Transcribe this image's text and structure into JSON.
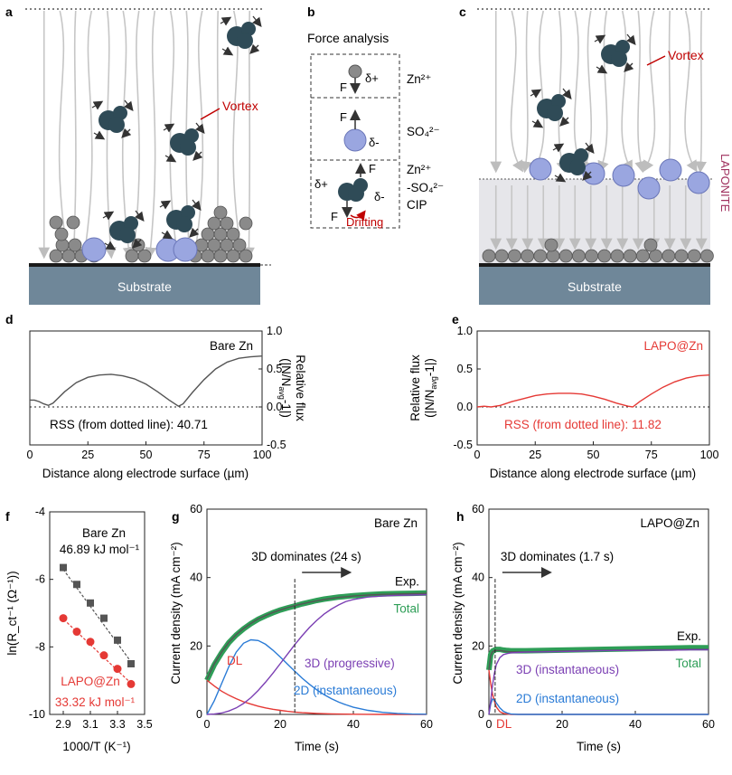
{
  "panels": {
    "a": {
      "label": "a",
      "vortex": "Vortex",
      "substrate": "Substrate"
    },
    "b": {
      "label": "b",
      "title": "Force analysis",
      "zn_label": "Zn²⁺",
      "so4_label": "SO₄²⁻",
      "cip_line1": "Zn²⁺",
      "cip_line2": "-SO₄²⁻",
      "cip_line3": "CIP",
      "force_F": "F",
      "delta_plus": "δ+",
      "delta_minus": "δ-",
      "drifting": "Drifting"
    },
    "c": {
      "label": "c",
      "vortex": "Vortex",
      "substrate": "Substrate",
      "laponite": "LAPONITE"
    },
    "d": {
      "label": "d",
      "legend": "Bare Zn",
      "rss": "RSS (from dotted line): 40.71"
    },
    "e": {
      "label": "e",
      "legend": "LAPO@Zn",
      "rss": "RSS (from dotted line): 11.82"
    },
    "f": {
      "label": "f",
      "bare_label": "Bare Zn",
      "bare_energy": "46.89 kJ mol⁻¹",
      "lapo_label": "LAPO@Zn",
      "lapo_energy": "33.32 kJ mol⁻¹"
    },
    "g": {
      "label": "g",
      "legend": "Bare Zn",
      "dominates": "3D dominates (24 s)",
      "exp": "Exp.",
      "total": "Total",
      "dl": "DL",
      "label_3d": "3D (progressive)",
      "label_2d": "2D (instantaneous)"
    },
    "h": {
      "label": "h",
      "legend": "LAPO@Zn",
      "dominates": "3D dominates (1.7 s)",
      "exp": "Exp.",
      "total": "Total",
      "dl": "DL",
      "label_3d": "3D (instantaneous)",
      "label_2d": "2D (instantaneous)"
    }
  },
  "colors": {
    "bare": "#555555",
    "lapo": "#e53935",
    "green": "#2e9e57",
    "purple": "#7b3fb3",
    "blue": "#2a7bd6",
    "cation": "#2f4b57",
    "anion": "#9aa6e0",
    "zn_atom": "#8a8a8a",
    "substrate": "#6f8799",
    "vortex": "#c00000",
    "laponite": "#a0305e"
  },
  "chart_data": [
    {
      "id": "d",
      "type": "line",
      "title": "Bare Zn",
      "xlabel": "Distance along electrode surface (µm)",
      "ylabel": "Relative flux (|N/N_avg -1|)",
      "xlim": [
        0,
        100
      ],
      "ylim": [
        -0.5,
        1.0
      ],
      "xticks": [
        "0",
        "25",
        "50",
        "75",
        "100"
      ],
      "yticks": [
        "-0.5",
        "0.0",
        "0.5",
        "1.0"
      ],
      "x": [
        0,
        2,
        4,
        6,
        8,
        10,
        15,
        20,
        25,
        30,
        35,
        40,
        45,
        50,
        55,
        60,
        64,
        66,
        70,
        75,
        80,
        85,
        90,
        95,
        100
      ],
      "y": [
        0.09,
        0.09,
        0.07,
        0.04,
        0.02,
        0.05,
        0.2,
        0.32,
        0.39,
        0.42,
        0.43,
        0.41,
        0.37,
        0.3,
        0.2,
        0.09,
        0.01,
        0.04,
        0.19,
        0.36,
        0.5,
        0.59,
        0.64,
        0.66,
        0.67
      ],
      "rss": 40.71
    },
    {
      "id": "e",
      "type": "line",
      "title": "LAPO@Zn",
      "xlabel": "Distance along electrode surface (µm)",
      "ylabel": "Relative flux (|N/N_avg -1|)",
      "xlim": [
        0,
        100
      ],
      "ylim": [
        -0.5,
        1.0
      ],
      "xticks": [
        "0",
        "25",
        "50",
        "75",
        "100"
      ],
      "yticks": [
        "-0.5",
        "0.0",
        "0.5",
        "1.0"
      ],
      "x": [
        0,
        3,
        6,
        10,
        15,
        20,
        25,
        30,
        35,
        40,
        45,
        50,
        55,
        60,
        65,
        67,
        70,
        75,
        80,
        85,
        90,
        95,
        100
      ],
      "y": [
        0.0,
        0.01,
        0.0,
        0.02,
        0.07,
        0.11,
        0.15,
        0.17,
        0.18,
        0.18,
        0.17,
        0.14,
        0.1,
        0.05,
        0.01,
        0.0,
        0.07,
        0.17,
        0.26,
        0.33,
        0.38,
        0.41,
        0.42
      ],
      "rss": 11.82
    },
    {
      "id": "f",
      "type": "scatter",
      "xlabel": "1000/T (K⁻¹)",
      "ylabel": "ln(R_ct⁻¹ (Ω⁻¹))",
      "xlim": [
        2.8,
        3.5
      ],
      "ylim": [
        -10,
        -4
      ],
      "xticks": [
        "2.9",
        "3.1",
        "3.3",
        "3.5"
      ],
      "yticks": [
        "-4",
        "-6",
        "-8",
        "-10"
      ],
      "series": [
        {
          "name": "Bare Zn",
          "x": [
            2.9,
            3.0,
            3.1,
            3.2,
            3.3,
            3.4
          ],
          "y": [
            -5.65,
            -6.15,
            -6.7,
            -7.15,
            -7.8,
            -8.5
          ]
        },
        {
          "name": "LAPO@Zn",
          "x": [
            2.9,
            3.0,
            3.1,
            3.2,
            3.3,
            3.4
          ],
          "y": [
            -7.15,
            -7.55,
            -7.85,
            -8.25,
            -8.65,
            -9.1
          ]
        }
      ]
    },
    {
      "id": "g",
      "type": "line",
      "title": "Bare Zn",
      "xlabel": "Time (s)",
      "ylabel": "Current density (mA cm⁻²)",
      "xlim": [
        0,
        60
      ],
      "ylim": [
        0,
        60
      ],
      "xticks": [
        "0",
        "20",
        "40",
        "60"
      ],
      "yticks": [
        "0",
        "20",
        "40",
        "60"
      ],
      "x": [
        0,
        2,
        4,
        6,
        8,
        10,
        12,
        14,
        16,
        18,
        20,
        22,
        24,
        26,
        28,
        30,
        32,
        34,
        36,
        38,
        40,
        44,
        48,
        52,
        56,
        60
      ],
      "series": [
        {
          "name": "Exp.",
          "values": [
            10,
            14.5,
            18,
            21,
            23.2,
            25,
            26.5,
            27.8,
            28.8,
            29.7,
            30.5,
            31.1,
            31.7,
            32.3,
            32.8,
            33.3,
            33.7,
            34.0,
            34.3,
            34.5,
            34.7,
            35.0,
            35.2,
            35.3,
            35.4,
            35.5
          ]
        },
        {
          "name": "Total",
          "values": [
            10.3,
            14.8,
            18.2,
            21.1,
            23.3,
            25.1,
            26.6,
            27.9,
            28.9,
            29.8,
            30.5,
            31.2,
            31.8,
            32.3,
            32.8,
            33.2,
            33.6,
            33.9,
            34.2,
            34.4,
            34.6,
            34.9,
            35.1,
            35.2,
            35.3,
            35.4
          ]
        },
        {
          "name": "DL",
          "values": [
            10,
            8.3,
            6.8,
            5.6,
            4.6,
            3.7,
            3.0,
            2.4,
            1.9,
            1.5,
            1.2,
            0.9,
            0.7,
            0.5,
            0.4,
            0.3,
            0.2,
            0.15,
            0.1,
            0.08,
            0.05,
            0.02,
            0.01,
            0,
            0,
            0
          ]
        },
        {
          "name": "2D (instantaneous)",
          "values": [
            0,
            4,
            9,
            14,
            18.2,
            20.8,
            21.8,
            21.6,
            20.5,
            18.8,
            16.8,
            14.7,
            12.6,
            10.6,
            8.8,
            7.2,
            5.8,
            4.6,
            3.6,
            2.8,
            2.1,
            1.2,
            0.6,
            0.3,
            0.1,
            0.05
          ]
        },
        {
          "name": "3D (progressive)",
          "values": [
            0,
            0.1,
            0.4,
            1.0,
            1.9,
            3.2,
            4.9,
            7.0,
            9.4,
            12.0,
            14.8,
            17.6,
            20.4,
            23.0,
            25.4,
            27.5,
            29.3,
            30.8,
            32.0,
            33.0,
            33.6,
            34.3,
            34.6,
            34.8,
            34.9,
            35.0
          ]
        }
      ],
      "annotation": {
        "text": "3D dominates (24 s)",
        "x": 24
      }
    },
    {
      "id": "h",
      "type": "line",
      "title": "LAPO@Zn",
      "xlabel": "Time (s)",
      "ylabel": "Current density (mA cm⁻²)",
      "xlim": [
        0,
        60
      ],
      "ylim": [
        0,
        60
      ],
      "xticks": [
        "0",
        "20",
        "40",
        "60"
      ],
      "yticks": [
        "0",
        "20",
        "40",
        "60"
      ],
      "x": [
        0,
        0.5,
        1,
        1.5,
        2,
        3,
        4,
        5,
        6,
        8,
        10,
        15,
        20,
        25,
        30,
        35,
        40,
        45,
        50,
        55,
        60
      ],
      "series": [
        {
          "name": "Exp.",
          "values": [
            13,
            17.5,
            18.5,
            18.8,
            19,
            19,
            18.8,
            18.7,
            18.6,
            18.6,
            18.6,
            18.7,
            18.8,
            18.9,
            19.0,
            19.1,
            19.2,
            19.3,
            19.4,
            19.5,
            19.5
          ]
        },
        {
          "name": "Total",
          "values": [
            13,
            17.2,
            18.3,
            18.6,
            18.7,
            18.7,
            18.5,
            18.4,
            18.3,
            18.3,
            18.3,
            18.4,
            18.5,
            18.6,
            18.7,
            18.8,
            18.8,
            18.9,
            18.9,
            19.0,
            19.0
          ]
        },
        {
          "name": "DL",
          "values": [
            13,
            9,
            6,
            3.8,
            2.2,
            0.8,
            0.3,
            0.1,
            0,
            0,
            0,
            0,
            0,
            0,
            0,
            0,
            0,
            0,
            0,
            0,
            0
          ]
        },
        {
          "name": "2D (instantaneous)",
          "values": [
            0,
            3,
            4.5,
            4.2,
            3.4,
            1.9,
            0.9,
            0.4,
            0.1,
            0,
            0,
            0,
            0,
            0,
            0,
            0,
            0,
            0,
            0,
            0,
            0
          ]
        },
        {
          "name": "3D (instantaneous)",
          "values": [
            0,
            4,
            8.5,
            12,
            14.5,
            16.6,
            17.5,
            17.8,
            18.0,
            18.1,
            18.2,
            18.3,
            18.4,
            18.5,
            18.6,
            18.7,
            18.7,
            18.8,
            18.8,
            18.9,
            18.9
          ]
        }
      ],
      "annotation": {
        "text": "3D dominates (1.7 s)",
        "x": 1.7
      }
    }
  ]
}
